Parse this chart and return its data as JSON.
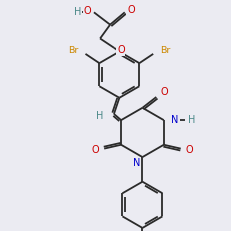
{
  "bg_color": "#ebebf2",
  "bond_color": "#2a2a2a",
  "O_color": "#cc0000",
  "N_color": "#0000cc",
  "Br_color": "#cc8800",
  "H_color": "#4a8888",
  "fs": 7.0
}
